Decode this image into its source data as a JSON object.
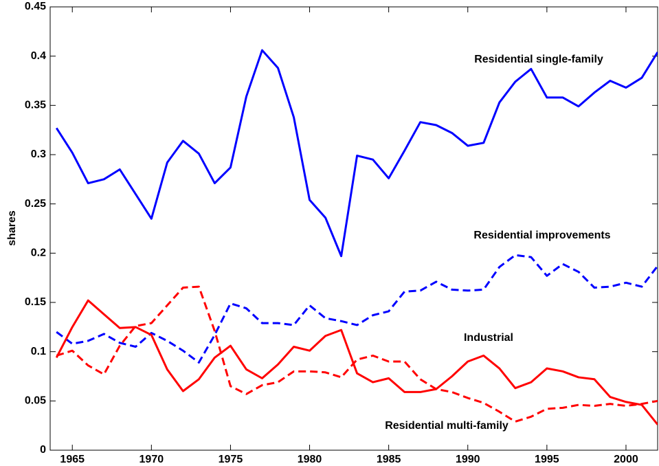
{
  "chart_data": {
    "type": "line",
    "y_label": "shares",
    "x": [
      1964,
      1965,
      1966,
      1967,
      1968,
      1969,
      1970,
      1971,
      1972,
      1973,
      1974,
      1975,
      1976,
      1977,
      1978,
      1979,
      1980,
      1981,
      1982,
      1983,
      1984,
      1985,
      1986,
      1987,
      1988,
      1989,
      1990,
      1991,
      1992,
      1993,
      1994,
      1995,
      1996,
      1997,
      1998,
      1999,
      2000,
      2001,
      2002
    ],
    "series": [
      {
        "name": "Residential single-family",
        "color": "#0000ff",
        "dashed": false,
        "values": [
          0.327,
          0.302,
          0.271,
          0.275,
          0.285,
          0.26,
          0.235,
          0.292,
          0.314,
          0.301,
          0.271,
          0.287,
          0.359,
          0.406,
          0.388,
          0.338,
          0.254,
          0.236,
          0.197,
          0.299,
          0.295,
          0.276,
          0.304,
          0.333,
          0.33,
          0.322,
          0.309,
          0.312,
          0.353,
          0.374,
          0.387,
          0.358,
          0.358,
          0.349,
          0.363,
          0.375,
          0.368,
          0.378,
          0.404
        ]
      },
      {
        "name": "Residential improvements",
        "color": "#0000ff",
        "dashed": true,
        "values": [
          0.12,
          0.108,
          0.111,
          0.118,
          0.109,
          0.105,
          0.119,
          0.111,
          0.101,
          0.089,
          0.117,
          0.149,
          0.144,
          0.129,
          0.129,
          0.127,
          0.147,
          0.134,
          0.131,
          0.127,
          0.137,
          0.141,
          0.161,
          0.162,
          0.171,
          0.163,
          0.162,
          0.163,
          0.186,
          0.198,
          0.196,
          0.177,
          0.189,
          0.181,
          0.165,
          0.166,
          0.17,
          0.166,
          0.187
        ]
      },
      {
        "name": "Industrial",
        "color": "#ff0000",
        "dashed": false,
        "values": [
          0.094,
          0.125,
          0.152,
          0.138,
          0.124,
          0.125,
          0.117,
          0.082,
          0.06,
          0.072,
          0.094,
          0.106,
          0.082,
          0.073,
          0.087,
          0.105,
          0.101,
          0.116,
          0.122,
          0.078,
          0.069,
          0.073,
          0.059,
          0.059,
          0.062,
          0.075,
          0.09,
          0.096,
          0.083,
          0.063,
          0.069,
          0.083,
          0.08,
          0.074,
          0.072,
          0.054,
          0.049,
          0.046,
          0.026
        ]
      },
      {
        "name": "Residential multi-family",
        "color": "#ff0000",
        "dashed": true,
        "values": [
          0.096,
          0.101,
          0.086,
          0.077,
          0.106,
          0.126,
          0.129,
          0.147,
          0.165,
          0.166,
          0.121,
          0.065,
          0.057,
          0.066,
          0.069,
          0.08,
          0.08,
          0.079,
          0.074,
          0.092,
          0.096,
          0.09,
          0.09,
          0.072,
          0.062,
          0.059,
          0.053,
          0.048,
          0.039,
          0.029,
          0.034,
          0.042,
          0.043,
          0.046,
          0.045,
          0.047,
          0.045,
          0.047,
          0.05
        ]
      }
    ],
    "xlim": [
      1963.6,
      2002
    ],
    "xticks": [
      1965,
      1970,
      1975,
      1980,
      1985,
      1990,
      1995,
      2000
    ],
    "ylim": [
      0,
      0.45
    ],
    "yticks": [
      0,
      0.05,
      0.1,
      0.15,
      0.2,
      0.25,
      0.3,
      0.35,
      0.4,
      0.45
    ],
    "grid": false
  }
}
